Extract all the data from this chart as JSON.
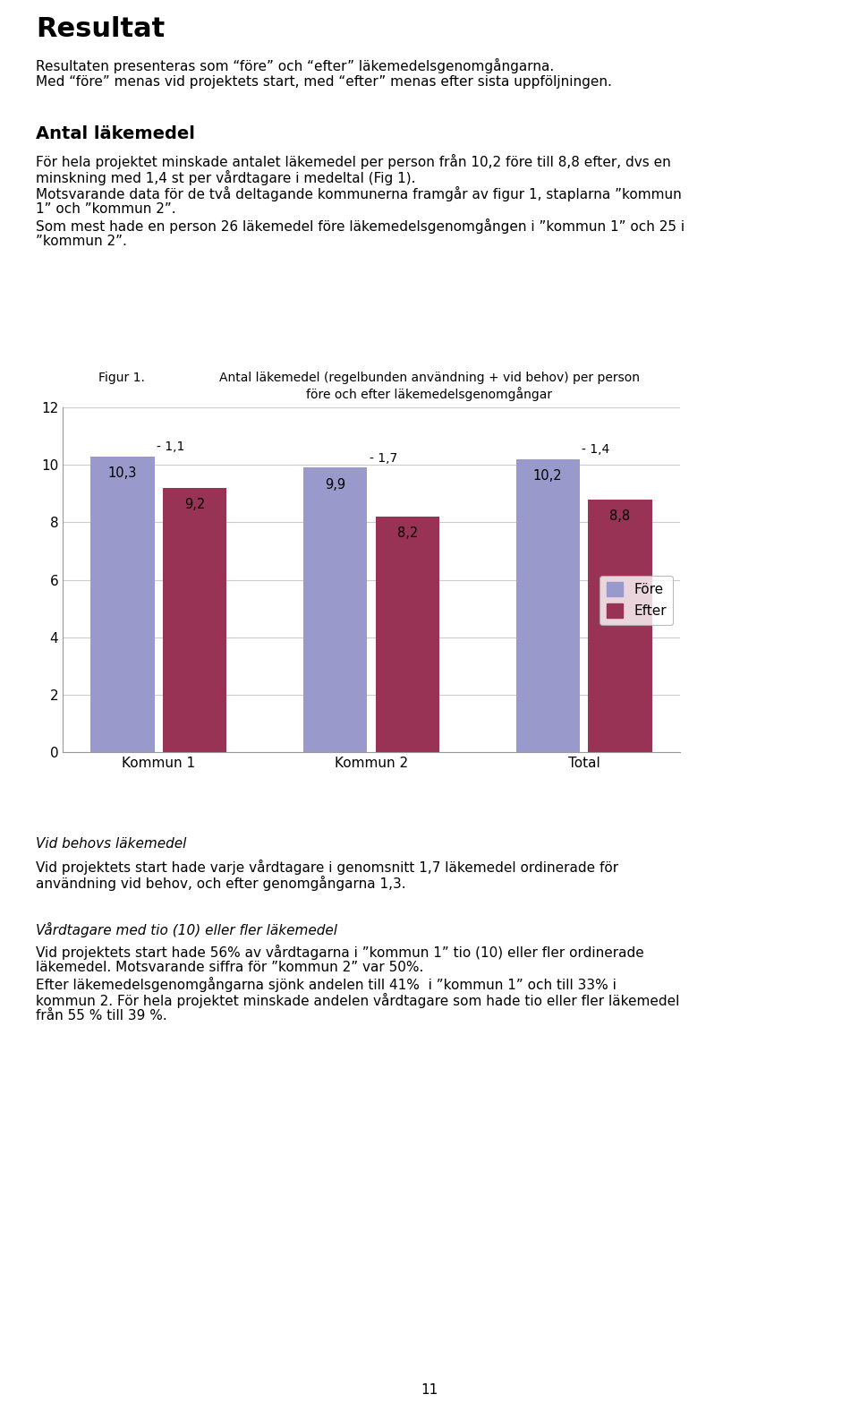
{
  "title_text": "Resultat",
  "para1_line1": "Resultaten presenteras som “före” och “efter” läkemedelsgenomgångarna.",
  "para1_line2": "Med “före” menas vid projektets start, med “efter” menas efter sista uppföljningen.",
  "section1_title": "Antal läkemedel",
  "section1_line1": "För hela projektet minskade antalet läkemedel per person från 10,2 före till 8,8 efter, dvs en",
  "section1_line2": "minskning med 1,4 st per vårdtagare i medeltal (Fig 1).",
  "section1_line3": "Motsvarande data för de två deltagande kommunerna framgår av figur 1, staplarna ”kommun",
  "section1_line4": "1” och ”kommun 2”.",
  "section1_line5": "Som mest hade en person 26 läkemedel före läkemedelsgenomgången i ”kommun 1” och 25 i",
  "section1_line6": "”kommun 2”.",
  "fig_label": "Figur 1.",
  "fig_title": "Antal läkemedel (regelbunden användning + vid behov) per person",
  "fig_subtitle": "före och efter läkemedelsgenomgångar",
  "categories": [
    "Kommun 1",
    "Kommun 2",
    "Total"
  ],
  "fore_values": [
    10.3,
    9.9,
    10.2
  ],
  "efter_values": [
    9.2,
    8.2,
    8.8
  ],
  "fore_labels": [
    "10,3",
    "9,9",
    "10,2"
  ],
  "efter_labels": [
    "9,2",
    "8,2",
    "8,8"
  ],
  "diff_values": [
    "- 1,1",
    "- 1,7",
    "- 1,4"
  ],
  "fore_color": "#9999cc",
  "efter_color": "#993355",
  "ylim": [
    0,
    12
  ],
  "yticks": [
    0,
    2,
    4,
    6,
    8,
    10,
    12
  ],
  "legend_fore": "Före",
  "legend_efter": "Efter",
  "section2_title": "Vid behovs läkemedel",
  "section2_line1": "Vid projektets start hade varje vårdtagare i genomsnitt 1,7 läkemedel ordinerade för",
  "section2_line2": "användning vid behov, och efter genomgångarna 1,3.",
  "section3_title": "Vårdtagare med tio (10) eller fler läkemedel",
  "section3_line1": "Vid projektets start hade 56% av vårdtagarna i ”kommun 1” tio (10) eller fler ordinerade",
  "section3_line2": "läkemedel. Motsvarande siffra för ”kommun 2” var 50%.",
  "section3_line3": "Efter läkemedelsgenomgångarna sjönk andelen till 41%  i ”kommun 1” och till 33% i",
  "section3_line4": "kommun 2. För hela projektet minskade andelen vårdtagare som hade tio eller fler läkemedel",
  "section3_line5": "från 55 % till 39 %.",
  "page_number": "11",
  "background_color": "#ffffff",
  "body_fontsize": 11,
  "title_fontsize": 22,
  "section_fontsize": 14
}
